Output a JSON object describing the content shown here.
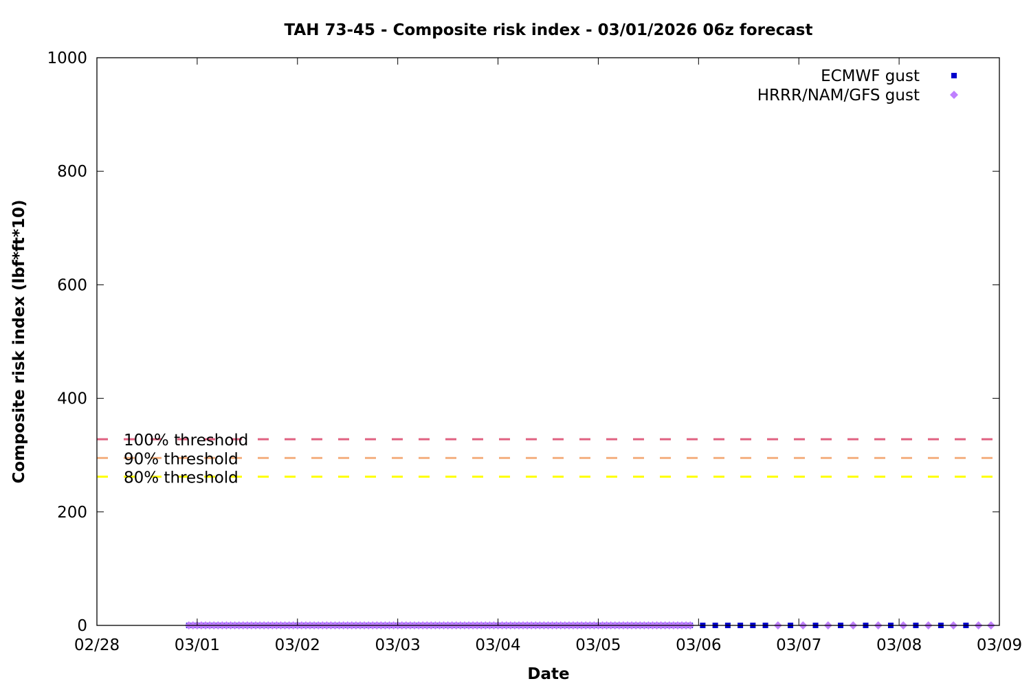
{
  "chart_data": {
    "type": "scatter",
    "title": "TAH 73-45 - Composite risk index - 03/01/2026 06z forecast",
    "xlabel": "Date",
    "ylabel": "Composite risk index (lbf*ft*10)",
    "xlim": [
      "2026-02-28 00:00",
      "2026-03-09 00:00"
    ],
    "ylim": [
      0,
      1000
    ],
    "x_ticks": [
      "02/28",
      "03/01",
      "03/02",
      "03/03",
      "03/04",
      "03/05",
      "03/06",
      "03/07",
      "03/08",
      "03/09"
    ],
    "y_ticks": [
      0,
      200,
      400,
      600,
      800,
      1000
    ],
    "grid": false,
    "legend_position": "top-right",
    "series": [
      {
        "name": "ECMWF gust",
        "color": "#0000cc",
        "marker": "square",
        "ranges": [
          {
            "start": "2026-02-28 22:00",
            "end": "2026-03-05 22:00",
            "interval_hours": 1,
            "value": 0
          },
          {
            "start": "2026-03-06 01:00",
            "end": "2026-03-06 16:00",
            "interval_hours": 3,
            "value": 0
          },
          {
            "start": "2026-03-06 22:00",
            "end": "2026-03-08 16:00",
            "interval_hours": 6,
            "value": 0
          }
        ]
      },
      {
        "name": "HRRR/NAM/GFS gust",
        "color": "#bf7fff",
        "marker": "diamond",
        "ranges": [
          {
            "start": "2026-02-28 22:00",
            "end": "2026-03-05 22:00",
            "interval_hours": 1,
            "value": 0
          },
          {
            "start": "2026-03-06 19:00",
            "end": "2026-03-08 19:00",
            "interval_hours": 6,
            "value": 0
          },
          {
            "start": "2026-03-08 22:00",
            "end": "2026-03-08 22:00",
            "interval_hours": 3,
            "value": 0
          }
        ]
      }
    ],
    "thresholds": [
      {
        "label": "100% threshold",
        "value": 328,
        "color": "#e06080"
      },
      {
        "label": "90% threshold",
        "value": 295,
        "color": "#f4b080"
      },
      {
        "label": "80% threshold",
        "value": 262,
        "color": "#ffff00"
      }
    ]
  }
}
